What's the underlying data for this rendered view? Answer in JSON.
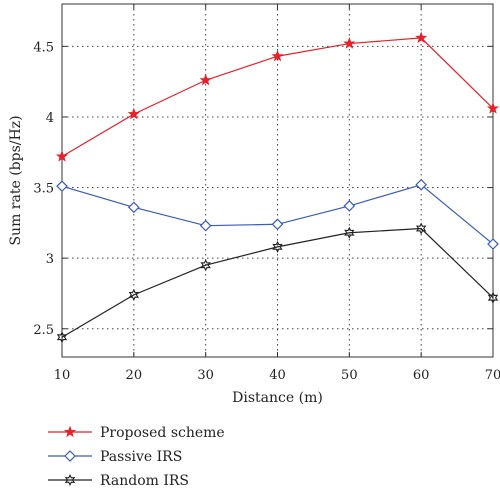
{
  "chart_data": {
    "type": "line",
    "title": "",
    "xlabel": "Distance (m)",
    "ylabel": "Sum rate (bps/Hz)",
    "x": [
      10,
      20,
      30,
      40,
      50,
      60,
      70
    ],
    "xlim": [
      10,
      70
    ],
    "ylim": [
      2.3,
      4.8
    ],
    "xticks": [
      10,
      20,
      30,
      40,
      50,
      60,
      70
    ],
    "yticks": [
      2.5,
      3,
      3.5,
      4,
      4.5
    ],
    "ytick_labels": [
      "2.5",
      "3",
      "3.5",
      "4",
      "4.5"
    ],
    "grid": true,
    "grid_style": "dotted",
    "legend_position": "below plot, left",
    "series": [
      {
        "name": "Proposed scheme",
        "color": "#e8202a",
        "marker": "star",
        "values": [
          3.72,
          4.02,
          4.26,
          4.43,
          4.52,
          4.56,
          4.06
        ]
      },
      {
        "name": "Passive IRS",
        "color": "#3a5bb8",
        "marker": "diamond",
        "values": [
          3.51,
          3.36,
          3.23,
          3.24,
          3.37,
          3.52,
          3.1
        ]
      },
      {
        "name": "Random IRS",
        "color": "#222222",
        "marker": "hexagram",
        "values": [
          2.44,
          2.74,
          2.95,
          3.08,
          3.18,
          3.21,
          2.72
        ]
      }
    ]
  }
}
